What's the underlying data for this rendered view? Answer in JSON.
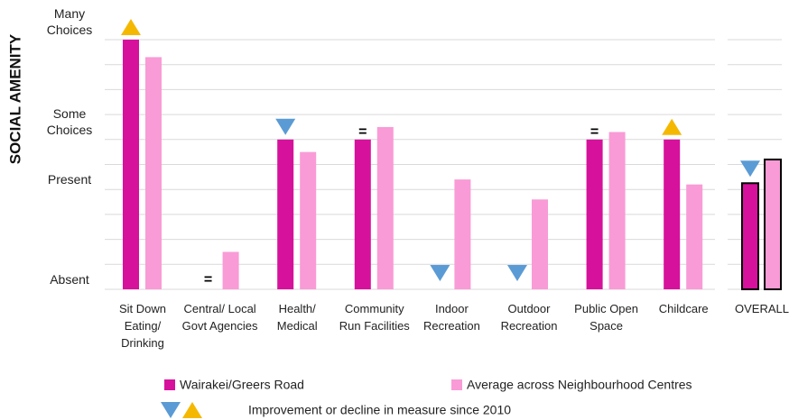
{
  "chart_data": {
    "type": "bar",
    "y_axis_label": "SOCIAL AMENITY",
    "categories": [
      "Sit Down Eating/ Drinking",
      "Central/ Local Govt Agencies",
      "Health/ Medical",
      "Community Run Facilities",
      "Indoor Recreation",
      "Outdoor Recreation",
      "Public Open Space",
      "Childcare",
      "OVERALL"
    ],
    "series": [
      {
        "name": "Wairakei/Greers Road",
        "color": "#d6119c",
        "values": [
          10,
          0,
          6,
          6,
          0,
          0,
          6,
          6,
          4.25
        ]
      },
      {
        "name": "Average across Neighbourhood Centres",
        "color": "#f99bd6",
        "values": [
          9.3,
          1.5,
          5.5,
          6.5,
          4.4,
          3.6,
          6.3,
          4.2,
          5.2
        ]
      }
    ],
    "changes": [
      "up",
      "=",
      "down",
      "=",
      "down",
      "down",
      "=",
      "up",
      "down"
    ],
    "change_legend": "Improvement or decline in measure since 2010",
    "up_color": "#f5b800",
    "down_color": "#5b9bd5",
    "ylim": [
      0,
      10
    ],
    "yticks": [
      {
        "value": 0,
        "label": "Absent"
      },
      {
        "value": 4,
        "label": "Present"
      },
      {
        "value": 6,
        "label": "Some Choices"
      },
      {
        "value": 10,
        "label": "Many Choices"
      }
    ],
    "minor_yticks": [
      1,
      2,
      3,
      5,
      7,
      8,
      9
    ],
    "grid": true
  }
}
